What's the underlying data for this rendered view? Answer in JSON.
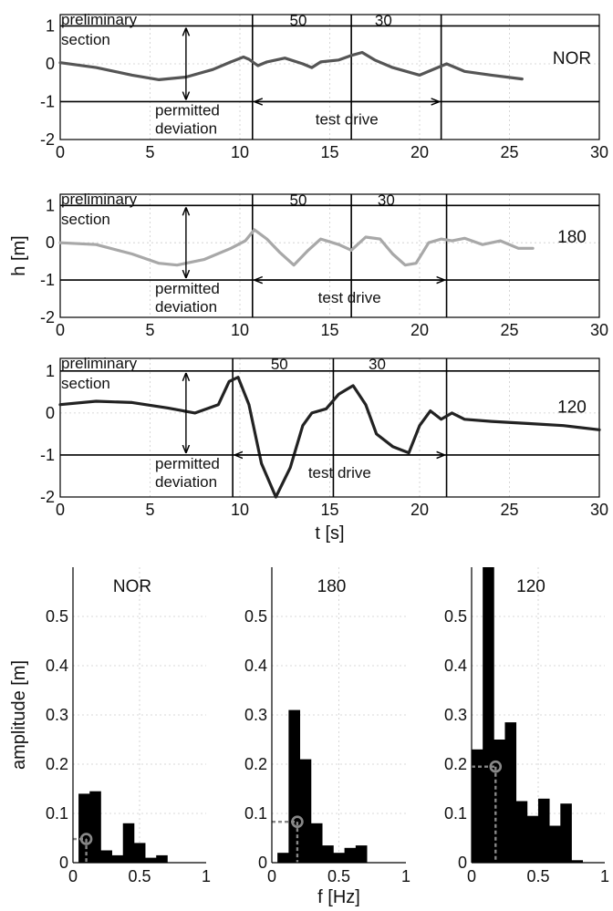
{
  "chart_data": [
    {
      "type": "line",
      "panel": "NOR",
      "series_label": "NOR",
      "line_color": "#555555",
      "xlim": [
        0,
        30
      ],
      "ylim": [
        -2,
        1.3
      ],
      "xticks": [
        0,
        5,
        10,
        15,
        20,
        25,
        30
      ],
      "yticks": [
        1,
        0,
        -1,
        -2
      ],
      "xlabel": "",
      "ylabel": "",
      "annotations": {
        "preliminary": "preliminary",
        "section": "section",
        "permitted": "permitted",
        "deviation": "deviation",
        "test_drive": "test drive",
        "speed_a": "50",
        "speed_b": "30"
      },
      "reference_lines_y": [
        1,
        -1
      ],
      "vertical_lines_x": [
        10.7,
        16.2,
        21.2
      ],
      "deviation_arrow_x": 7.0,
      "test_drive_arrow_x": [
        10.7,
        21.2
      ],
      "x": [
        0,
        2,
        4,
        5.5,
        7,
        8.5,
        9.5,
        10.2,
        10.5,
        11,
        11.5,
        12.5,
        13.5,
        14,
        14.5,
        15.5,
        16.2,
        16.8,
        17.5,
        18.5,
        20,
        21,
        21.5,
        22.5,
        24,
        25.7
      ],
      "y": [
        0.03,
        -0.1,
        -0.3,
        -0.42,
        -0.35,
        -0.15,
        0.05,
        0.18,
        0.12,
        -0.05,
        0.05,
        0.15,
        0.0,
        -0.1,
        0.05,
        0.1,
        0.22,
        0.3,
        0.1,
        -0.1,
        -0.3,
        -0.1,
        0.0,
        -0.2,
        -0.3,
        -0.4
      ]
    },
    {
      "type": "line",
      "panel": "180",
      "series_label": "180",
      "line_color": "#a8a8a8",
      "xlim": [
        0,
        30
      ],
      "ylim": [
        -2,
        1.3
      ],
      "xticks": [
        0,
        5,
        10,
        15,
        20,
        25,
        30
      ],
      "yticks": [
        1,
        0,
        -1,
        -2
      ],
      "xlabel": "",
      "ylabel": "h [m]",
      "annotations": {
        "preliminary": "preliminary",
        "section": "section",
        "permitted": "permitted",
        "deviation": "deviation",
        "test_drive": "test drive",
        "speed_a": "50",
        "speed_b": "30"
      },
      "reference_lines_y": [
        1,
        -1
      ],
      "vertical_lines_x": [
        10.7,
        16.2,
        21.5
      ],
      "deviation_arrow_x": 7.0,
      "test_drive_arrow_x": [
        10.7,
        21.5
      ],
      "x": [
        0,
        2,
        4,
        5.5,
        6.5,
        8,
        9.5,
        10.3,
        10.8,
        11.5,
        12.2,
        13,
        13.8,
        14.5,
        15.5,
        16.2,
        17,
        17.8,
        18.5,
        19.2,
        19.8,
        20.5,
        21.2,
        21.8,
        22.5,
        23.5,
        24.5,
        25.5,
        26.3
      ],
      "y": [
        0.0,
        -0.05,
        -0.3,
        -0.55,
        -0.6,
        -0.45,
        -0.15,
        0.05,
        0.35,
        0.1,
        -0.25,
        -0.6,
        -0.2,
        0.1,
        -0.05,
        -0.2,
        0.15,
        0.1,
        -0.3,
        -0.6,
        -0.55,
        0.0,
        0.1,
        0.05,
        0.12,
        -0.05,
        0.05,
        -0.15,
        -0.15
      ]
    },
    {
      "type": "line",
      "panel": "120",
      "series_label": "120",
      "line_color": "#222222",
      "xlim": [
        0,
        30
      ],
      "ylim": [
        -2,
        1.3
      ],
      "xticks": [
        0,
        5,
        10,
        15,
        20,
        25,
        30
      ],
      "yticks": [
        1,
        0,
        -1,
        -2
      ],
      "xlabel": "t [s]",
      "ylabel": "",
      "annotations": {
        "preliminary": "preliminary",
        "section": "section",
        "permitted": "permitted",
        "deviation": "deviation",
        "test_drive": "test drive",
        "speed_a": "50",
        "speed_b": "30"
      },
      "reference_lines_y": [
        1,
        -1
      ],
      "vertical_lines_x": [
        9.6,
        15.2,
        21.5
      ],
      "deviation_arrow_x": 7.0,
      "test_drive_arrow_x": [
        9.6,
        21.5
      ],
      "x": [
        0,
        2,
        4,
        6,
        7.5,
        8.8,
        9.4,
        9.9,
        10.5,
        11.2,
        12.0,
        12.8,
        13.5,
        14.0,
        14.8,
        15.5,
        16.3,
        17.0,
        17.6,
        18.5,
        19.4,
        20.0,
        20.6,
        21.2,
        21.8,
        22.5,
        24,
        26,
        28,
        30
      ],
      "y": [
        0.2,
        0.28,
        0.25,
        0.12,
        0.0,
        0.2,
        0.75,
        0.85,
        0.2,
        -1.2,
        -2.0,
        -1.3,
        -0.3,
        0.0,
        0.1,
        0.45,
        0.65,
        0.2,
        -0.5,
        -0.8,
        -0.95,
        -0.3,
        0.05,
        -0.15,
        0.0,
        -0.15,
        -0.2,
        -0.25,
        -0.3,
        -0.4
      ]
    },
    {
      "type": "bar",
      "panel": "NOR",
      "title": "NOR",
      "xlabel": "",
      "ylabel": "amplitude [m]",
      "xlim": [
        0,
        1
      ],
      "ylim": [
        0,
        0.6
      ],
      "xticks": [
        0,
        0.5,
        1
      ],
      "xtick_labels": [
        "0",
        "0.5",
        "1"
      ],
      "yticks": [
        0,
        0.1,
        0.2,
        0.3,
        0.4,
        0.5
      ],
      "ytick_labels": [
        "0",
        "0.1",
        "0.2",
        "0.3",
        "0.4",
        "0.5"
      ],
      "bin_width": 0.0833,
      "bin_start": 0.0417,
      "values": [
        0.14,
        0.145,
        0.025,
        0.015,
        0.08,
        0.04,
        0.01,
        0.015,
        0.0,
        0.0,
        0.0
      ],
      "marker": {
        "f": 0.1,
        "amplitude": 0.048
      }
    },
    {
      "type": "bar",
      "panel": "180",
      "title": "180",
      "xlabel": "f [Hz]",
      "ylabel": "",
      "xlim": [
        0,
        1
      ],
      "ylim": [
        0,
        0.6
      ],
      "xticks": [
        0,
        0.5,
        1
      ],
      "xtick_labels": [
        "0",
        "0.5",
        "1"
      ],
      "yticks": [
        0,
        0.1,
        0.2,
        0.3,
        0.4,
        0.5
      ],
      "ytick_labels": [
        "0",
        "0.1",
        "0.2",
        "0.3",
        "0.4",
        "0.5"
      ],
      "bin_width": 0.0833,
      "bin_start": 0.0417,
      "values": [
        0.02,
        0.31,
        0.21,
        0.08,
        0.035,
        0.02,
        0.03,
        0.035,
        0.0,
        0.0,
        0.0
      ],
      "marker": {
        "f": 0.19,
        "amplitude": 0.083
      }
    },
    {
      "type": "bar",
      "panel": "120",
      "title": "120",
      "xlabel": "",
      "ylabel": "",
      "xlim": [
        0,
        1
      ],
      "ylim": [
        0,
        0.6
      ],
      "xticks": [
        0,
        0.5,
        1
      ],
      "xtick_labels": [
        "0",
        "0.5",
        "1"
      ],
      "yticks": [
        0,
        0.1,
        0.2,
        0.3,
        0.4,
        0.5
      ],
      "ytick_labels": [
        "0",
        "0.1",
        "0.2",
        "0.3",
        "0.4",
        "0.5"
      ],
      "bin_width": 0.0833,
      "bin_start": 0.0,
      "values": [
        0.23,
        0.6,
        0.25,
        0.285,
        0.125,
        0.095,
        0.13,
        0.075,
        0.12,
        0.005,
        0.0
      ],
      "marker": {
        "f": 0.18,
        "amplitude": 0.195
      }
    }
  ]
}
